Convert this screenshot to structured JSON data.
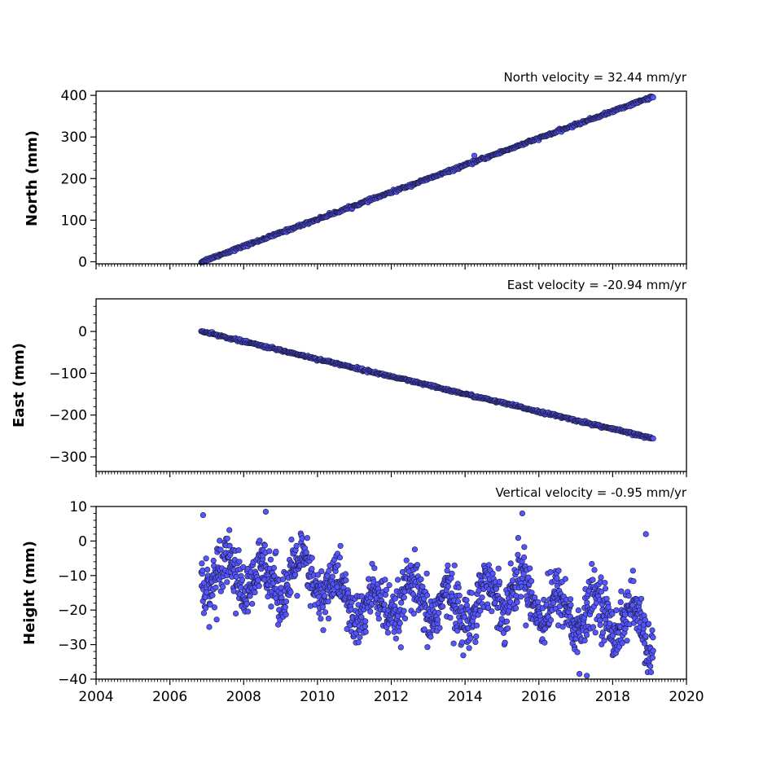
{
  "colors": {
    "marker_fill": "#5555ff",
    "marker_edge": "#1a1a3a",
    "axes": "#000000"
  },
  "chart_data": [
    {
      "type": "scatter",
      "title": "North velocity = 32.44 mm/yr",
      "xlabel": "",
      "ylabel": "North (mm)",
      "xlim": [
        2004,
        2020
      ],
      "ylim": [
        -5,
        410
      ],
      "xticks": [
        2004,
        2006,
        2008,
        2010,
        2012,
        2014,
        2016,
        2018,
        2020
      ],
      "yticks": [
        0,
        100,
        200,
        300,
        400
      ],
      "ytick_labels": [
        "0",
        "100",
        "200",
        "300",
        "400"
      ],
      "show_xtick_labels": false,
      "grid": false,
      "series": [
        {
          "x_range": [
            2006.85,
            2019.1
          ],
          "start_value": 0,
          "rate": 32.44,
          "scatter_sd": 1.6,
          "outliers": [
            [
              2014.25,
              255
            ]
          ],
          "samples": 700
        }
      ]
    },
    {
      "type": "scatter",
      "title": "East velocity = -20.94 mm/yr",
      "xlabel": "",
      "ylabel": "East (mm)",
      "xlim": [
        2004,
        2020
      ],
      "ylim": [
        -335,
        78
      ],
      "xticks": [
        2004,
        2006,
        2008,
        2010,
        2012,
        2014,
        2016,
        2018,
        2020
      ],
      "yticks": [
        0,
        -100,
        -200,
        -300
      ],
      "ytick_labels": [
        "0",
        "−100",
        "−200",
        "−300"
      ],
      "show_xtick_labels": false,
      "grid": false,
      "series": [
        {
          "x_range": [
            2006.85,
            2019.1
          ],
          "start_value": 0,
          "rate": -20.94,
          "scatter_sd": 1.5,
          "outliers": [],
          "samples": 700
        }
      ]
    },
    {
      "type": "scatter",
      "title": "Vertical velocity = -0.95 mm/yr",
      "xlabel": "",
      "ylabel": "Height (mm)",
      "xlim": [
        2004,
        2020
      ],
      "ylim": [
        -40,
        10
      ],
      "xticks": [
        2004,
        2006,
        2008,
        2010,
        2012,
        2014,
        2016,
        2018,
        2020
      ],
      "xtick_labels": [
        "2004",
        "2006",
        "2008",
        "2010",
        "2012",
        "2014",
        "2016",
        "2018",
        "2020"
      ],
      "yticks": [
        10,
        0,
        -10,
        -20,
        -30,
        -40
      ],
      "ytick_labels": [
        "10",
        "0",
        "−10",
        "−20",
        "−30",
        "−40"
      ],
      "show_xtick_labels": true,
      "grid": false,
      "series": [
        {
          "x_range": [
            2006.85,
            2019.1
          ],
          "mean": -11,
          "rate": -0.95,
          "seasonal_amplitude": 5,
          "scatter_sd": 4,
          "outliers": [
            [
              2008.6,
              8.5
            ],
            [
              2015.55,
              8
            ],
            [
              2017.3,
              -39
            ],
            [
              2017.1,
              -38.5
            ],
            [
              2006.9,
              7.5
            ],
            [
              2018.9,
              2
            ]
          ],
          "samples": 1400
        }
      ]
    }
  ]
}
